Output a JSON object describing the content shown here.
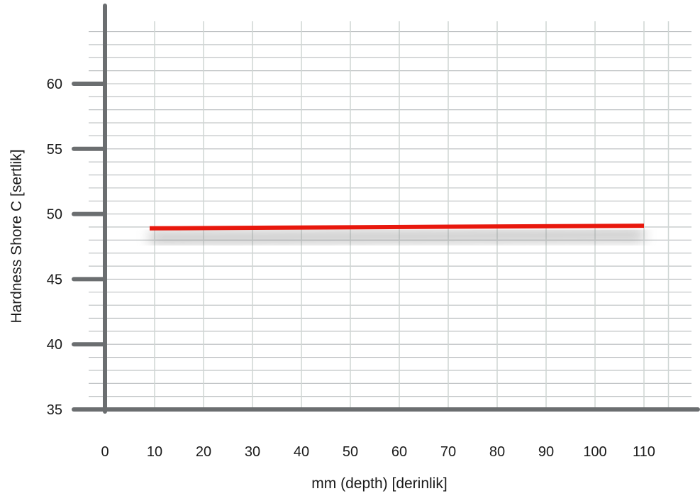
{
  "chart_data": {
    "type": "line",
    "title": "",
    "xlabel": "mm (depth) [derinlik]",
    "ylabel": "Hardness Shore C [sertlik]",
    "xlim": [
      0,
      120
    ],
    "ylim": [
      35,
      65
    ],
    "x_ticks": [
      0,
      10,
      20,
      30,
      40,
      50,
      60,
      70,
      80,
      90,
      100,
      110
    ],
    "y_ticks": [
      35,
      40,
      45,
      50,
      55,
      60
    ],
    "grid": true,
    "series": [
      {
        "color": "#e8180d",
        "x": [
          9,
          110
        ],
        "y": [
          48.9,
          49.1
        ]
      }
    ]
  }
}
